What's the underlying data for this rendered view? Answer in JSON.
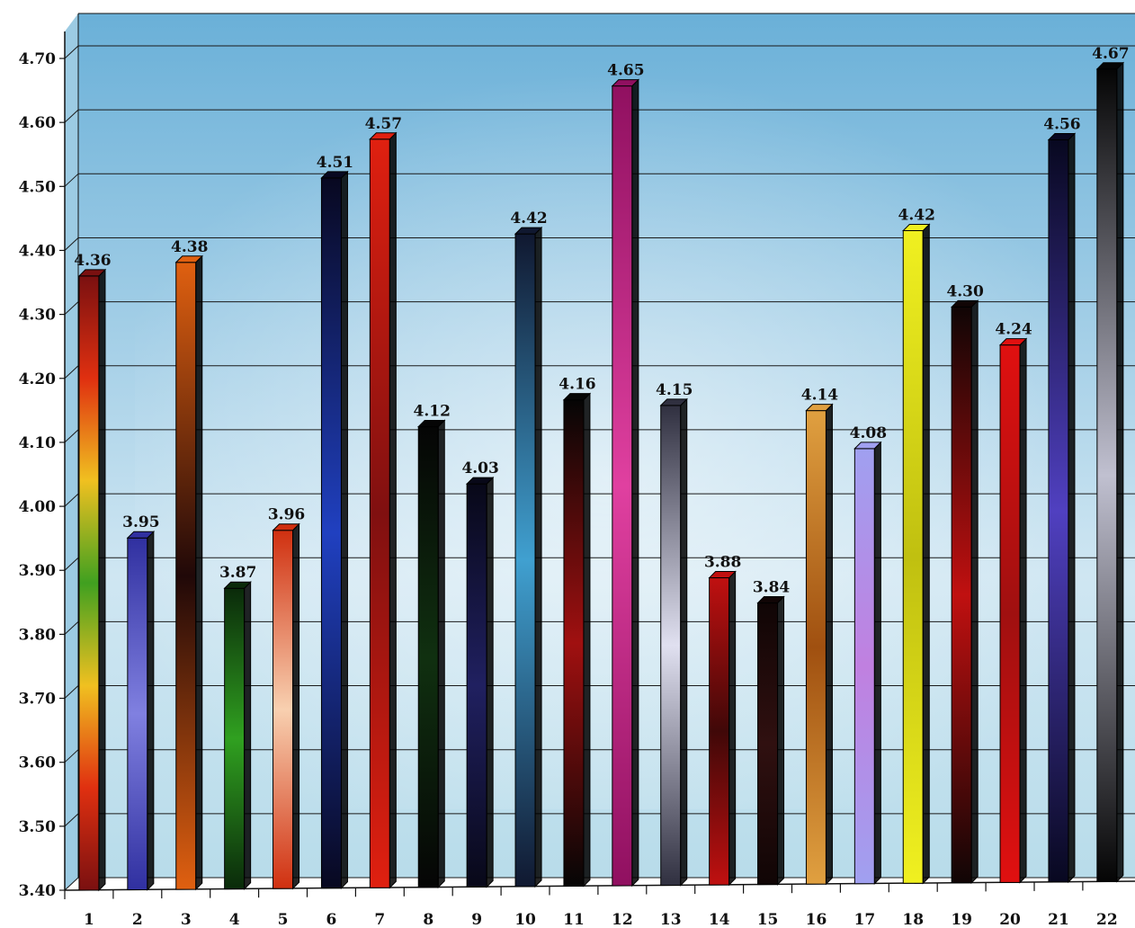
{
  "chart_data": {
    "type": "bar",
    "title": "",
    "xlabel": "",
    "ylabel": "",
    "ylim": [
      3.4,
      4.7
    ],
    "y_ticks": [
      "3.40",
      "3.50",
      "3.60",
      "3.70",
      "3.80",
      "3.90",
      "4.00",
      "4.10",
      "4.20",
      "4.30",
      "4.40",
      "4.50",
      "4.60",
      "4.70"
    ],
    "grid": true,
    "categories": [
      "1",
      "2",
      "3",
      "4",
      "5",
      "6",
      "7",
      "8",
      "9",
      "10",
      "11",
      "12",
      "13",
      "14",
      "15",
      "16",
      "17",
      "18",
      "19",
      "20",
      "21",
      "22"
    ],
    "values": [
      4.36,
      3.95,
      4.38,
      3.87,
      3.96,
      4.51,
      4.57,
      4.12,
      4.03,
      4.42,
      4.16,
      4.65,
      4.15,
      3.88,
      3.84,
      4.14,
      4.08,
      4.42,
      4.3,
      4.24,
      4.56,
      4.67
    ],
    "value_labels": [
      "4.36",
      "3.95",
      "4.38",
      "3.87",
      "3.96",
      "4.51",
      "4.57",
      "4.12",
      "4.03",
      "4.42",
      "4.16",
      "4.65",
      "4.15",
      "3.88",
      "3.84",
      "4.14",
      "4.08",
      "4.42",
      "4.30",
      "4.24",
      "4.56",
      "4.67"
    ],
    "bar_colors": [
      [
        "#7a1010",
        "#e03010",
        "#f0c020",
        "#40a020",
        "#f0c020",
        "#e03010",
        "#7a1010"
      ],
      [
        "#3030a0",
        "#8080e0",
        "#3030a0"
      ],
      [
        "#e06010",
        "#200808",
        "#e06010"
      ],
      [
        "#0a2a0a",
        "#30a020",
        "#0a2a0a"
      ],
      [
        "#d03010",
        "#f8d0b0",
        "#d03010"
      ],
      [
        "#080820",
        "#2040c0",
        "#080820"
      ],
      [
        "#e02010",
        "#801010",
        "#e02010"
      ],
      [
        "#050505",
        "#103010",
        "#050505"
      ],
      [
        "#080818",
        "#202060",
        "#080818"
      ],
      [
        "#101830",
        "#40a0d0",
        "#101830"
      ],
      [
        "#050505",
        "#a01010",
        "#050505"
      ],
      [
        "#901060",
        "#e040a0",
        "#901060"
      ],
      [
        "#303040",
        "#e0e0f0",
        "#303040"
      ],
      [
        "#c01010",
        "#400808",
        "#c01010"
      ],
      [
        "#100505",
        "#301010",
        "#100505"
      ],
      [
        "#e0a040",
        "#a05010",
        "#e0a040"
      ],
      [
        "#a0a0f0",
        "#c080e0",
        "#a0a0f0"
      ],
      [
        "#f0f020",
        "#c0c010",
        "#f0f020"
      ],
      [
        "#100505",
        "#c01010",
        "#100505"
      ],
      [
        "#e01010",
        "#a01010",
        "#e01010"
      ],
      [
        "#080820",
        "#5040c0",
        "#080820"
      ],
      [
        "#050505",
        "#c0c0d0",
        "#050505"
      ]
    ],
    "background_colors": [
      "#6ab0d8",
      "#cfe6f2",
      "#b8dcea"
    ]
  }
}
